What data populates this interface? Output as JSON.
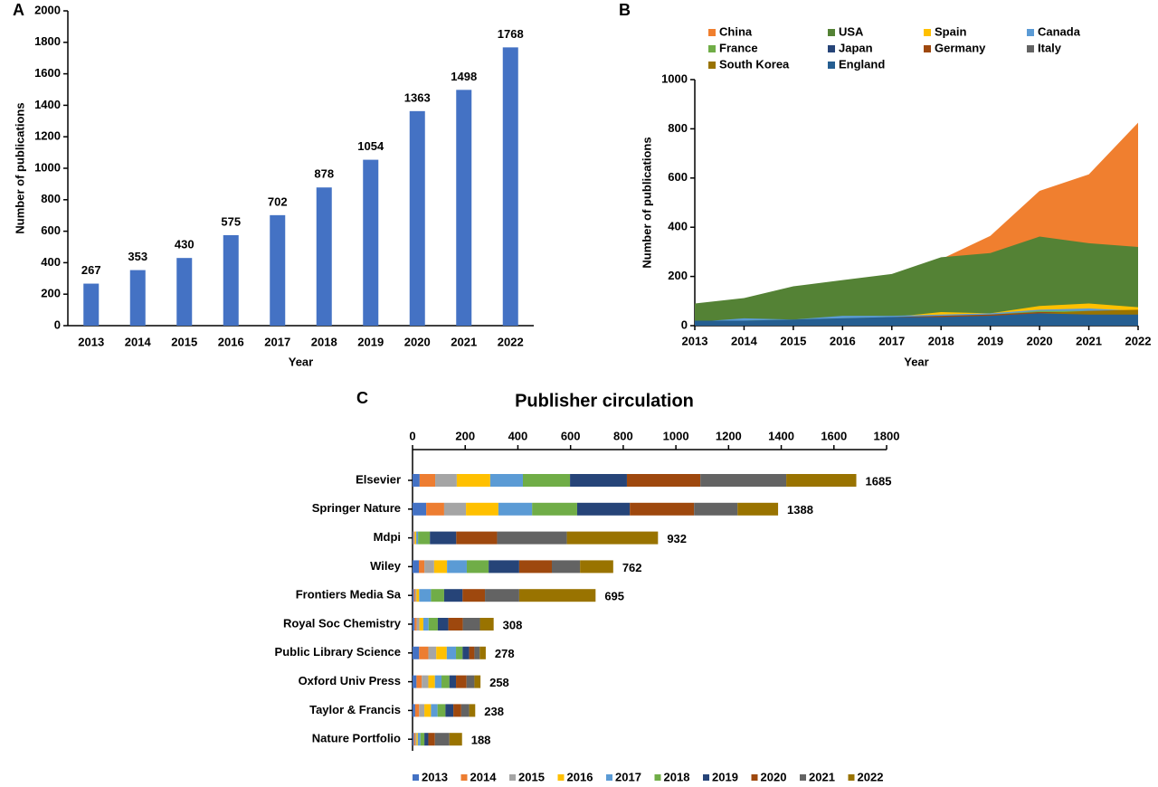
{
  "chart_data": [
    {
      "type": "bar",
      "panel": "A",
      "orientation": "vertical",
      "categories": [
        "2013",
        "2014",
        "2015",
        "2016",
        "2017",
        "2018",
        "2019",
        "2020",
        "2021",
        "2022"
      ],
      "values": [
        267,
        353,
        430,
        575,
        702,
        878,
        1054,
        1363,
        1498,
        1768
      ],
      "color": "#4472c4",
      "xlabel": "Year",
      "ylabel": "Number of publications",
      "ylim": [
        0,
        2000
      ],
      "yticks": [
        0,
        200,
        400,
        600,
        800,
        1000,
        1200,
        1400,
        1600,
        1800,
        2000
      ],
      "grid": false
    },
    {
      "type": "area",
      "panel": "B",
      "categories": [
        "2013",
        "2014",
        "2015",
        "2016",
        "2017",
        "2018",
        "2019",
        "2020",
        "2021",
        "2022"
      ],
      "xlabel": "Year",
      "ylabel": "Number of publications",
      "ylim": [
        0,
        1000
      ],
      "yticks": [
        0,
        200,
        400,
        600,
        800,
        1000
      ],
      "grid": false,
      "legend": "top",
      "series": [
        {
          "name": "China",
          "color": "#f07f2f",
          "values": [
            20,
            35,
            60,
            90,
            150,
            270,
            365,
            548,
            615,
            825
          ]
        },
        {
          "name": "USA",
          "color": "#548235",
          "values": [
            90,
            112,
            160,
            185,
            210,
            278,
            295,
            362,
            335,
            320
          ]
        },
        {
          "name": "Spain",
          "color": "#ffc000",
          "values": [
            10,
            15,
            20,
            25,
            35,
            55,
            50,
            80,
            90,
            75
          ]
        },
        {
          "name": "Canada",
          "color": "#5b9bd5",
          "values": [
            15,
            30,
            25,
            40,
            40,
            45,
            50,
            65,
            70,
            60
          ]
        },
        {
          "name": "France",
          "color": "#70ad47",
          "values": [
            20,
            20,
            25,
            30,
            35,
            40,
            45,
            60,
            60,
            55
          ]
        },
        {
          "name": "Japan",
          "color": "#264478",
          "values": [
            15,
            20,
            20,
            25,
            30,
            30,
            40,
            55,
            50,
            50
          ]
        },
        {
          "name": "Germany",
          "color": "#9e480e",
          "values": [
            15,
            20,
            20,
            25,
            35,
            40,
            45,
            55,
            55,
            50
          ]
        },
        {
          "name": "Italy",
          "color": "#636363",
          "values": [
            10,
            15,
            20,
            20,
            25,
            30,
            35,
            45,
            55,
            50
          ]
        },
        {
          "name": "South Korea",
          "color": "#997300",
          "values": [
            10,
            15,
            15,
            20,
            25,
            30,
            40,
            50,
            60,
            65
          ]
        },
        {
          "name": "England",
          "color": "#255e91",
          "values": [
            20,
            20,
            25,
            30,
            35,
            35,
            40,
            50,
            45,
            45
          ]
        }
      ]
    },
    {
      "type": "bar",
      "panel": "C",
      "orientation": "horizontal",
      "stacked": true,
      "title": "Publisher circulation",
      "categories": [
        "Elsevier",
        "Springer Nature",
        "Mdpi",
        "Wiley",
        "Frontiers Media Sa",
        "Royal Soc Chemistry",
        "Public Library Science",
        "Oxford Univ Press",
        "Taylor & Francis",
        "Nature Portfolio"
      ],
      "totals": [
        1685,
        1388,
        932,
        762,
        695,
        308,
        278,
        258,
        238,
        188
      ],
      "xlim": [
        0,
        1800
      ],
      "xticks": [
        0,
        200,
        400,
        600,
        800,
        1000,
        1200,
        1400,
        1600,
        1800
      ],
      "grid": false,
      "legend": "bottom",
      "series": [
        {
          "name": "2013",
          "color": "#4472c4",
          "values": [
            27,
            52,
            3,
            24,
            5,
            8,
            25,
            15,
            10,
            5
          ]
        },
        {
          "name": "2014",
          "color": "#ed7d31",
          "values": [
            59,
            68,
            3,
            21,
            5,
            8,
            35,
            20,
            15,
            5
          ]
        },
        {
          "name": "2015",
          "color": "#a5a5a5",
          "values": [
            82,
            83,
            3,
            37,
            5,
            10,
            30,
            25,
            20,
            5
          ]
        },
        {
          "name": "2016",
          "color": "#ffc000",
          "values": [
            127,
            123,
            5,
            49,
            10,
            15,
            40,
            25,
            25,
            5
          ]
        },
        {
          "name": "2017",
          "color": "#5b9bd5",
          "values": [
            124,
            128,
            7,
            75,
            45,
            20,
            35,
            25,
            25,
            10
          ]
        },
        {
          "name": "2018",
          "color": "#70ad47",
          "values": [
            179,
            171,
            45,
            83,
            50,
            35,
            25,
            30,
            30,
            15
          ]
        },
        {
          "name": "2019",
          "color": "#264478",
          "values": [
            216,
            200,
            100,
            116,
            70,
            40,
            25,
            25,
            30,
            15
          ]
        },
        {
          "name": "2020",
          "color": "#9e480e",
          "values": [
            279,
            244,
            155,
            124,
            85,
            55,
            20,
            40,
            30,
            25
          ]
        },
        {
          "name": "2021",
          "color": "#636363",
          "values": [
            326,
            165,
            265,
            107,
            130,
            65,
            20,
            30,
            30,
            55
          ]
        },
        {
          "name": "2022",
          "color": "#997300",
          "values": [
            266,
            154,
            346,
            126,
            290,
            52,
            23,
            23,
            23,
            48
          ]
        }
      ]
    }
  ]
}
